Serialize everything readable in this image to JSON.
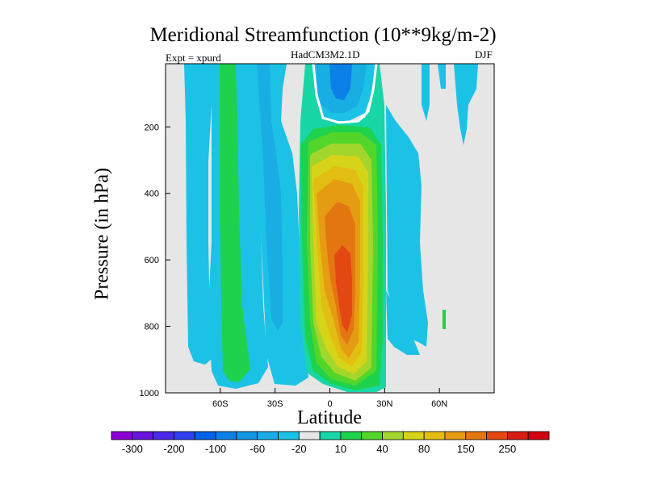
{
  "chart_data": {
    "type": "contour",
    "title": "Meridional Streamfunction (10**9kg/m-2)",
    "left_label": "Expt = xpurd",
    "center_label": "HadCM3M2.1D",
    "right_label": "DJF",
    "xlabel": "Latitude",
    "ylabel": "Pressure (in hPa)",
    "x_ticks": [
      {
        "value": -60,
        "label": "60S"
      },
      {
        "value": -30,
        "label": "30S"
      },
      {
        "value": 0,
        "label": "0"
      },
      {
        "value": 30,
        "label": "30N"
      },
      {
        "value": 60,
        "label": "60N"
      }
    ],
    "y_ticks": [
      {
        "value": 200,
        "label": "200"
      },
      {
        "value": 400,
        "label": "400"
      },
      {
        "value": 600,
        "label": "600"
      },
      {
        "value": 800,
        "label": "800"
      },
      {
        "value": 1000,
        "label": "1000"
      }
    ],
    "xlim": [
      -90,
      90
    ],
    "ylim": [
      1000,
      10
    ],
    "colorbar": {
      "levels": [
        -300,
        -250,
        -200,
        -150,
        -100,
        -80,
        -60,
        -40,
        -20,
        -10,
        10,
        20,
        40,
        60,
        80,
        100,
        150,
        200,
        250,
        300
      ],
      "labels": [
        "-300",
        "-200",
        "-100",
        "-60",
        "-20",
        "10",
        "40",
        "80",
        "150",
        "250"
      ],
      "colors": [
        "#8c00d8",
        "#6a14e0",
        "#4a28ea",
        "#2e3ef2",
        "#0062e6",
        "#0a80e8",
        "#1296e6",
        "#18aee4",
        "#1cc2e6",
        "#e6e6e6",
        "#18d6a6",
        "#1fd24e",
        "#52d62a",
        "#a2d62c",
        "#d6d418",
        "#e2be12",
        "#e69c12",
        "#e47612",
        "#e44812",
        "#d81c14",
        "#d00010"
      ]
    },
    "features": [
      {
        "name": "upper-negative-cell",
        "lat_range": [
          -3,
          18
        ],
        "pressure_range": [
          10,
          180
        ],
        "min_level": -80
      },
      {
        "name": "tropical-positive-cell",
        "lat_range": [
          -15,
          28
        ],
        "pressure_range": [
          180,
          990
        ],
        "max_level": 250
      },
      {
        "name": "southern-hemisphere-negative-bands",
        "lat_range": [
          -80,
          -5
        ],
        "pressure_range": [
          10,
          970
        ],
        "min_level": -40
      },
      {
        "name": "southern-positive-band",
        "lat_range": [
          -60,
          -50
        ],
        "pressure_range": [
          10,
          980
        ],
        "max_level": 40
      },
      {
        "name": "northern-negative-band",
        "lat_range": [
          30,
          55
        ],
        "pressure_range": [
          180,
          870
        ],
        "min_level": -20
      }
    ]
  }
}
